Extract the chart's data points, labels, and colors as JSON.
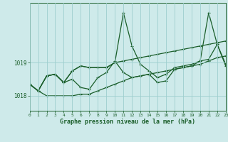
{
  "xlabel": "Graphe pression niveau de la mer (hPa)",
  "background_color": "#ceeaea",
  "grid_color": "#9ecece",
  "line_color": "#1a5e2a",
  "x": [
    0,
    1,
    2,
    3,
    4,
    5,
    6,
    7,
    8,
    9,
    10,
    11,
    12,
    13,
    14,
    15,
    16,
    17,
    18,
    19,
    20,
    21,
    22,
    23
  ],
  "line1": [
    1018.35,
    1018.15,
    1018.6,
    1018.65,
    1018.4,
    1018.5,
    1018.25,
    1018.2,
    1018.55,
    1018.7,
    1019.05,
    1018.7,
    1018.55,
    1018.6,
    1018.65,
    1018.4,
    1018.45,
    1018.8,
    1018.85,
    1018.9,
    1019.05,
    1020.5,
    1019.55,
    1018.9
  ],
  "line2": [
    1018.35,
    1018.15,
    1018.0,
    1018.0,
    1018.0,
    1018.0,
    1018.05,
    1018.05,
    1018.15,
    1018.25,
    1018.35,
    1018.45,
    1018.55,
    1018.6,
    1018.65,
    1018.7,
    1018.75,
    1018.8,
    1018.85,
    1018.9,
    1018.95,
    1019.05,
    1019.15,
    1019.2
  ],
  "line3": [
    1018.35,
    1018.15,
    1018.6,
    1018.65,
    1018.4,
    1018.75,
    1018.9,
    1018.85,
    1018.85,
    1018.85,
    1019.0,
    1020.5,
    1019.5,
    1018.95,
    1018.75,
    1018.55,
    1018.65,
    1018.85,
    1018.9,
    1018.95,
    1019.05,
    1019.1,
    1019.55,
    1018.95
  ],
  "line4": [
    1018.35,
    1018.15,
    1018.6,
    1018.65,
    1018.4,
    1018.75,
    1018.9,
    1018.85,
    1018.85,
    1018.85,
    1019.0,
    1019.05,
    1019.1,
    1019.15,
    1019.2,
    1019.25,
    1019.3,
    1019.35,
    1019.4,
    1019.45,
    1019.5,
    1019.55,
    1019.6,
    1019.65
  ],
  "ytick_locs": [
    1018,
    1019
  ],
  "ytick_labels": [
    "1018",
    "1019"
  ],
  "xticks": [
    0,
    1,
    2,
    3,
    4,
    5,
    6,
    7,
    8,
    9,
    10,
    11,
    12,
    13,
    14,
    15,
    16,
    17,
    18,
    19,
    20,
    21,
    22,
    23
  ],
  "ylim": [
    1017.55,
    1020.8
  ],
  "xlim": [
    0,
    23
  ]
}
